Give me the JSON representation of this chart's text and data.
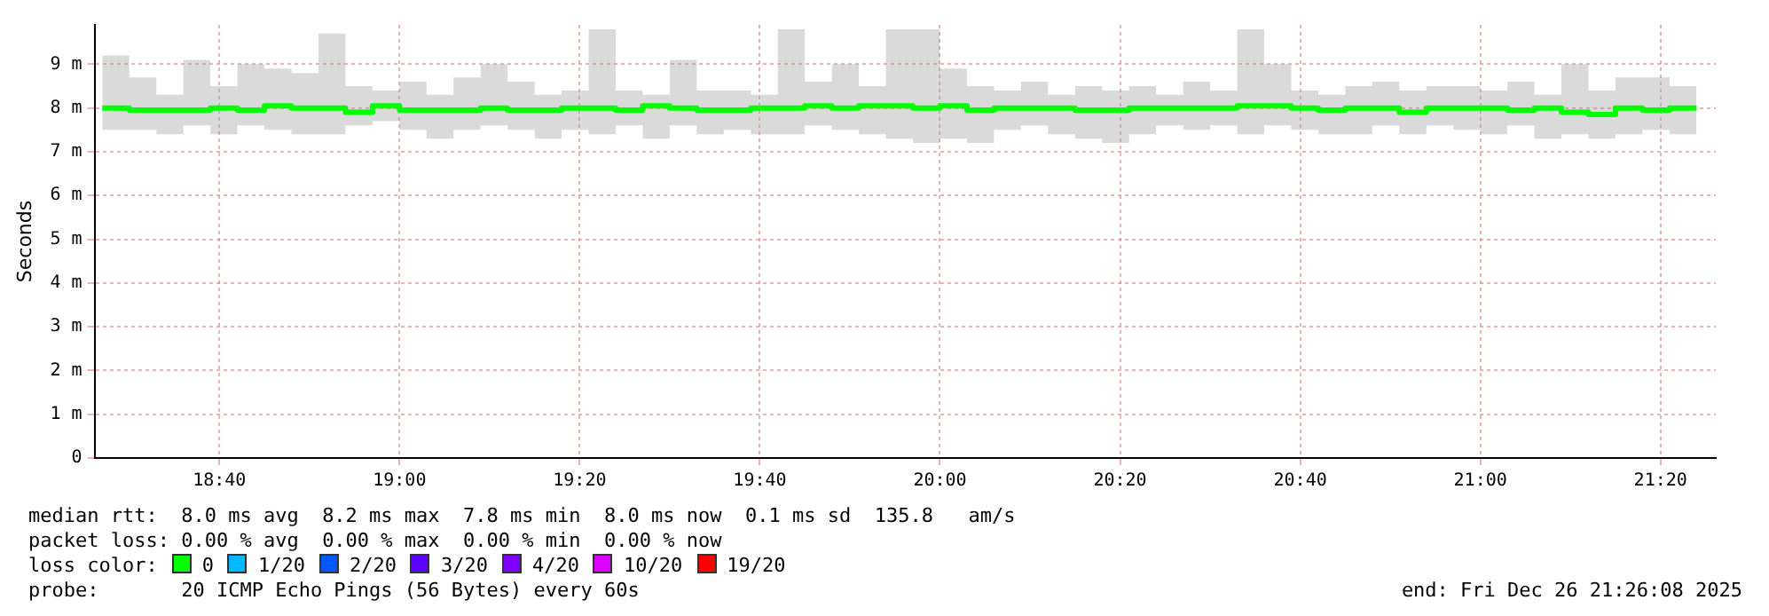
{
  "chart_data": {
    "type": "step",
    "ylabel": "Seconds",
    "legend_title": "loss color:",
    "legend": "bottom",
    "grid": true,
    "marker": "none",
    "line_style": "solid",
    "xlim": [
      18.4356,
      21.4356
    ],
    "xticks": [
      {
        "value": 18.6667,
        "label": "18:40"
      },
      {
        "value": 19,
        "label": "19:00"
      },
      {
        "value": 19.3333,
        "label": "19:20"
      },
      {
        "value": 19.6667,
        "label": "19:40"
      },
      {
        "value": 20,
        "label": "20:00"
      },
      {
        "value": 20.3333,
        "label": "20:20"
      },
      {
        "value": 20.6667,
        "label": "20:40"
      },
      {
        "value": 21,
        "label": "21:00"
      },
      {
        "value": 21.3333,
        "label": "21:20"
      }
    ],
    "ylim": [
      0,
      9.9
    ],
    "yticks": [
      0,
      {
        "value": 1,
        "label": "1 m"
      },
      {
        "value": 2,
        "label": "2 m"
      },
      {
        "value": 3,
        "label": "3 m"
      },
      {
        "value": 4,
        "label": "4 m"
      },
      {
        "value": 5,
        "label": "5 m"
      },
      {
        "value": 6,
        "label": "6 m"
      },
      {
        "value": 7,
        "label": "7 m"
      },
      {
        "value": 8,
        "label": "8 m"
      },
      {
        "value": 9,
        "label": "9 m"
      }
    ],
    "x": [
      18.45,
      18.5,
      18.55,
      18.6,
      18.65,
      18.7,
      18.75,
      18.8,
      18.85,
      18.9,
      18.95,
      19,
      19.05,
      19.1,
      19.15,
      19.2,
      19.25,
      19.3,
      19.35,
      19.4,
      19.45,
      19.5,
      19.55,
      19.6,
      19.65,
      19.7,
      19.75,
      19.8,
      19.85,
      19.9,
      19.95,
      20,
      20.05,
      20.1,
      20.15,
      20.2,
      20.25,
      20.3,
      20.35,
      20.4,
      20.45,
      20.5,
      20.55,
      20.6,
      20.65,
      20.7,
      20.75,
      20.8,
      20.85,
      20.9,
      20.95,
      21,
      21.05,
      21.1,
      21.15,
      21.2,
      21.25,
      21.3,
      21.35,
      21.4
    ],
    "series": [
      {
        "name": "0",
        "color": "#00ff00",
        "values": [
          8.0,
          8.0,
          7.95,
          7.95,
          7.95,
          8.0,
          7.95,
          8.05,
          8.0,
          8.0,
          7.9,
          8.05,
          7.95,
          7.95,
          7.95,
          8.0,
          7.95,
          7.95,
          8.0,
          8.0,
          7.95,
          8.05,
          8.0,
          7.95,
          7.95,
          8.0,
          8.0,
          8.05,
          8.0,
          8.05,
          8.05,
          8.0,
          8.05,
          7.95,
          8.0,
          8.0,
          8.0,
          7.95,
          7.95,
          8.0,
          8.0,
          8.0,
          8.0,
          8.05,
          8.05,
          8.0,
          7.95,
          8.0,
          8.0,
          7.9,
          8.0,
          8.0,
          8.0,
          7.95,
          8.0,
          7.9,
          7.85,
          8.0,
          7.95,
          8.0
        ],
        "lower": [
          7.4,
          7.5,
          7.5,
          7.4,
          7.6,
          7.4,
          7.6,
          7.5,
          7.4,
          7.4,
          7.6,
          7.7,
          7.5,
          7.3,
          7.5,
          7.6,
          7.5,
          7.3,
          7.5,
          7.4,
          7.6,
          7.3,
          7.6,
          7.4,
          7.5,
          7.4,
          7.4,
          7.6,
          7.5,
          7.4,
          7.3,
          7.2,
          7.3,
          7.2,
          7.5,
          7.6,
          7.4,
          7.3,
          7.2,
          7.4,
          7.6,
          7.5,
          7.6,
          7.4,
          7.6,
          7.5,
          7.4,
          7.4,
          7.6,
          7.4,
          7.6,
          7.5,
          7.4,
          7.6,
          7.3,
          7.4,
          7.3,
          7.4,
          7.5,
          7.4
        ],
        "upper": [
          8.6,
          9.2,
          8.7,
          8.3,
          9.1,
          8.5,
          9.0,
          8.9,
          8.8,
          9.7,
          8.5,
          8.4,
          8.6,
          8.3,
          8.7,
          9.0,
          8.6,
          8.3,
          8.4,
          9.8,
          8.4,
          8.3,
          9.1,
          8.4,
          8.4,
          8.3,
          9.8,
          8.6,
          9.0,
          8.5,
          9.8,
          9.8,
          8.9,
          8.5,
          8.4,
          8.6,
          8.3,
          8.5,
          8.4,
          8.5,
          8.3,
          8.6,
          8.4,
          9.8,
          9.0,
          8.4,
          8.3,
          8.5,
          8.6,
          8.4,
          8.5,
          8.5,
          8.4,
          8.6,
          8.3,
          9.0,
          8.4,
          8.7,
          8.7,
          8.5
        ]
      },
      {
        "name": "1/20",
        "color": "#00b8ff",
        "values": [
          null,
          null,
          null,
          null,
          null,
          null,
          null,
          null,
          null,
          null,
          null,
          null,
          null,
          null,
          null,
          null,
          null,
          null,
          null,
          null,
          null,
          null,
          null,
          null,
          null,
          null,
          null,
          null,
          null,
          null,
          null,
          null,
          null,
          null,
          null,
          null,
          null,
          null,
          null,
          null,
          null,
          null,
          null,
          null,
          null,
          null,
          null,
          null,
          null,
          null,
          null,
          null,
          null,
          null,
          null,
          null,
          null,
          null,
          null,
          null
        ]
      },
      {
        "name": "2/20",
        "color": "#0059ff",
        "values": [
          null,
          null,
          null,
          null,
          null,
          null,
          null,
          null,
          null,
          null,
          null,
          null,
          null,
          null,
          null,
          null,
          null,
          null,
          null,
          null,
          null,
          null,
          null,
          null,
          null,
          null,
          null,
          null,
          null,
          null,
          null,
          null,
          null,
          null,
          null,
          null,
          null,
          null,
          null,
          null,
          null,
          null,
          null,
          null,
          null,
          null,
          null,
          null,
          null,
          null,
          null,
          null,
          null,
          null,
          null,
          null,
          null,
          null,
          null,
          null
        ]
      },
      {
        "name": "3/20",
        "color": "#5e00ff",
        "values": [
          null,
          null,
          null,
          null,
          null,
          null,
          null,
          null,
          null,
          null,
          null,
          null,
          null,
          null,
          null,
          null,
          null,
          null,
          null,
          null,
          null,
          null,
          null,
          null,
          null,
          null,
          null,
          null,
          null,
          null,
          null,
          null,
          null,
          null,
          null,
          null,
          null,
          null,
          null,
          null,
          null,
          null,
          null,
          null,
          null,
          null,
          null,
          null,
          null,
          null,
          null,
          null,
          null,
          null,
          null,
          null,
          null,
          null,
          null,
          null
        ]
      },
      {
        "name": "4/20",
        "color": "#7e00ff",
        "values": [
          null,
          null,
          null,
          null,
          null,
          null,
          null,
          null,
          null,
          null,
          null,
          null,
          null,
          null,
          null,
          null,
          null,
          null,
          null,
          null,
          null,
          null,
          null,
          null,
          null,
          null,
          null,
          null,
          null,
          null,
          null,
          null,
          null,
          null,
          null,
          null,
          null,
          null,
          null,
          null,
          null,
          null,
          null,
          null,
          null,
          null,
          null,
          null,
          null,
          null,
          null,
          null,
          null,
          null,
          null,
          null,
          null,
          null,
          null,
          null
        ]
      },
      {
        "name": "10/20",
        "color": "#dd00ff",
        "values": [
          null,
          null,
          null,
          null,
          null,
          null,
          null,
          null,
          null,
          null,
          null,
          null,
          null,
          null,
          null,
          null,
          null,
          null,
          null,
          null,
          null,
          null,
          null,
          null,
          null,
          null,
          null,
          null,
          null,
          null,
          null,
          null,
          null,
          null,
          null,
          null,
          null,
          null,
          null,
          null,
          null,
          null,
          null,
          null,
          null,
          null,
          null,
          null,
          null,
          null,
          null,
          null,
          null,
          null,
          null,
          null,
          null,
          null,
          null,
          null
        ]
      },
      {
        "name": "19/20",
        "color": "#ff0000",
        "values": [
          null,
          null,
          null,
          null,
          null,
          null,
          null,
          null,
          null,
          null,
          null,
          null,
          null,
          null,
          null,
          null,
          null,
          null,
          null,
          null,
          null,
          null,
          null,
          null,
          null,
          null,
          null,
          null,
          null,
          null,
          null,
          null,
          null,
          null,
          null,
          null,
          null,
          null,
          null,
          null,
          null,
          null,
          null,
          null,
          null,
          null,
          null,
          null,
          null,
          null,
          null,
          null,
          null,
          null,
          null,
          null,
          null,
          null,
          null,
          null
        ]
      }
    ],
    "annotations": [
      "median rtt:  8.0 ms avg  8.2 ms max  7.8 ms min  8.0 ms now  0.1 ms sd  135.8   am/s",
      "packet loss: 0.00 % avg  0.00 % max  0.00 % min  0.00 % now",
      "probe:       20 ICMP Echo Pings (56 Bytes) every 60s",
      "end: Fri Dec 26 21:26:08 2025"
    ]
  }
}
